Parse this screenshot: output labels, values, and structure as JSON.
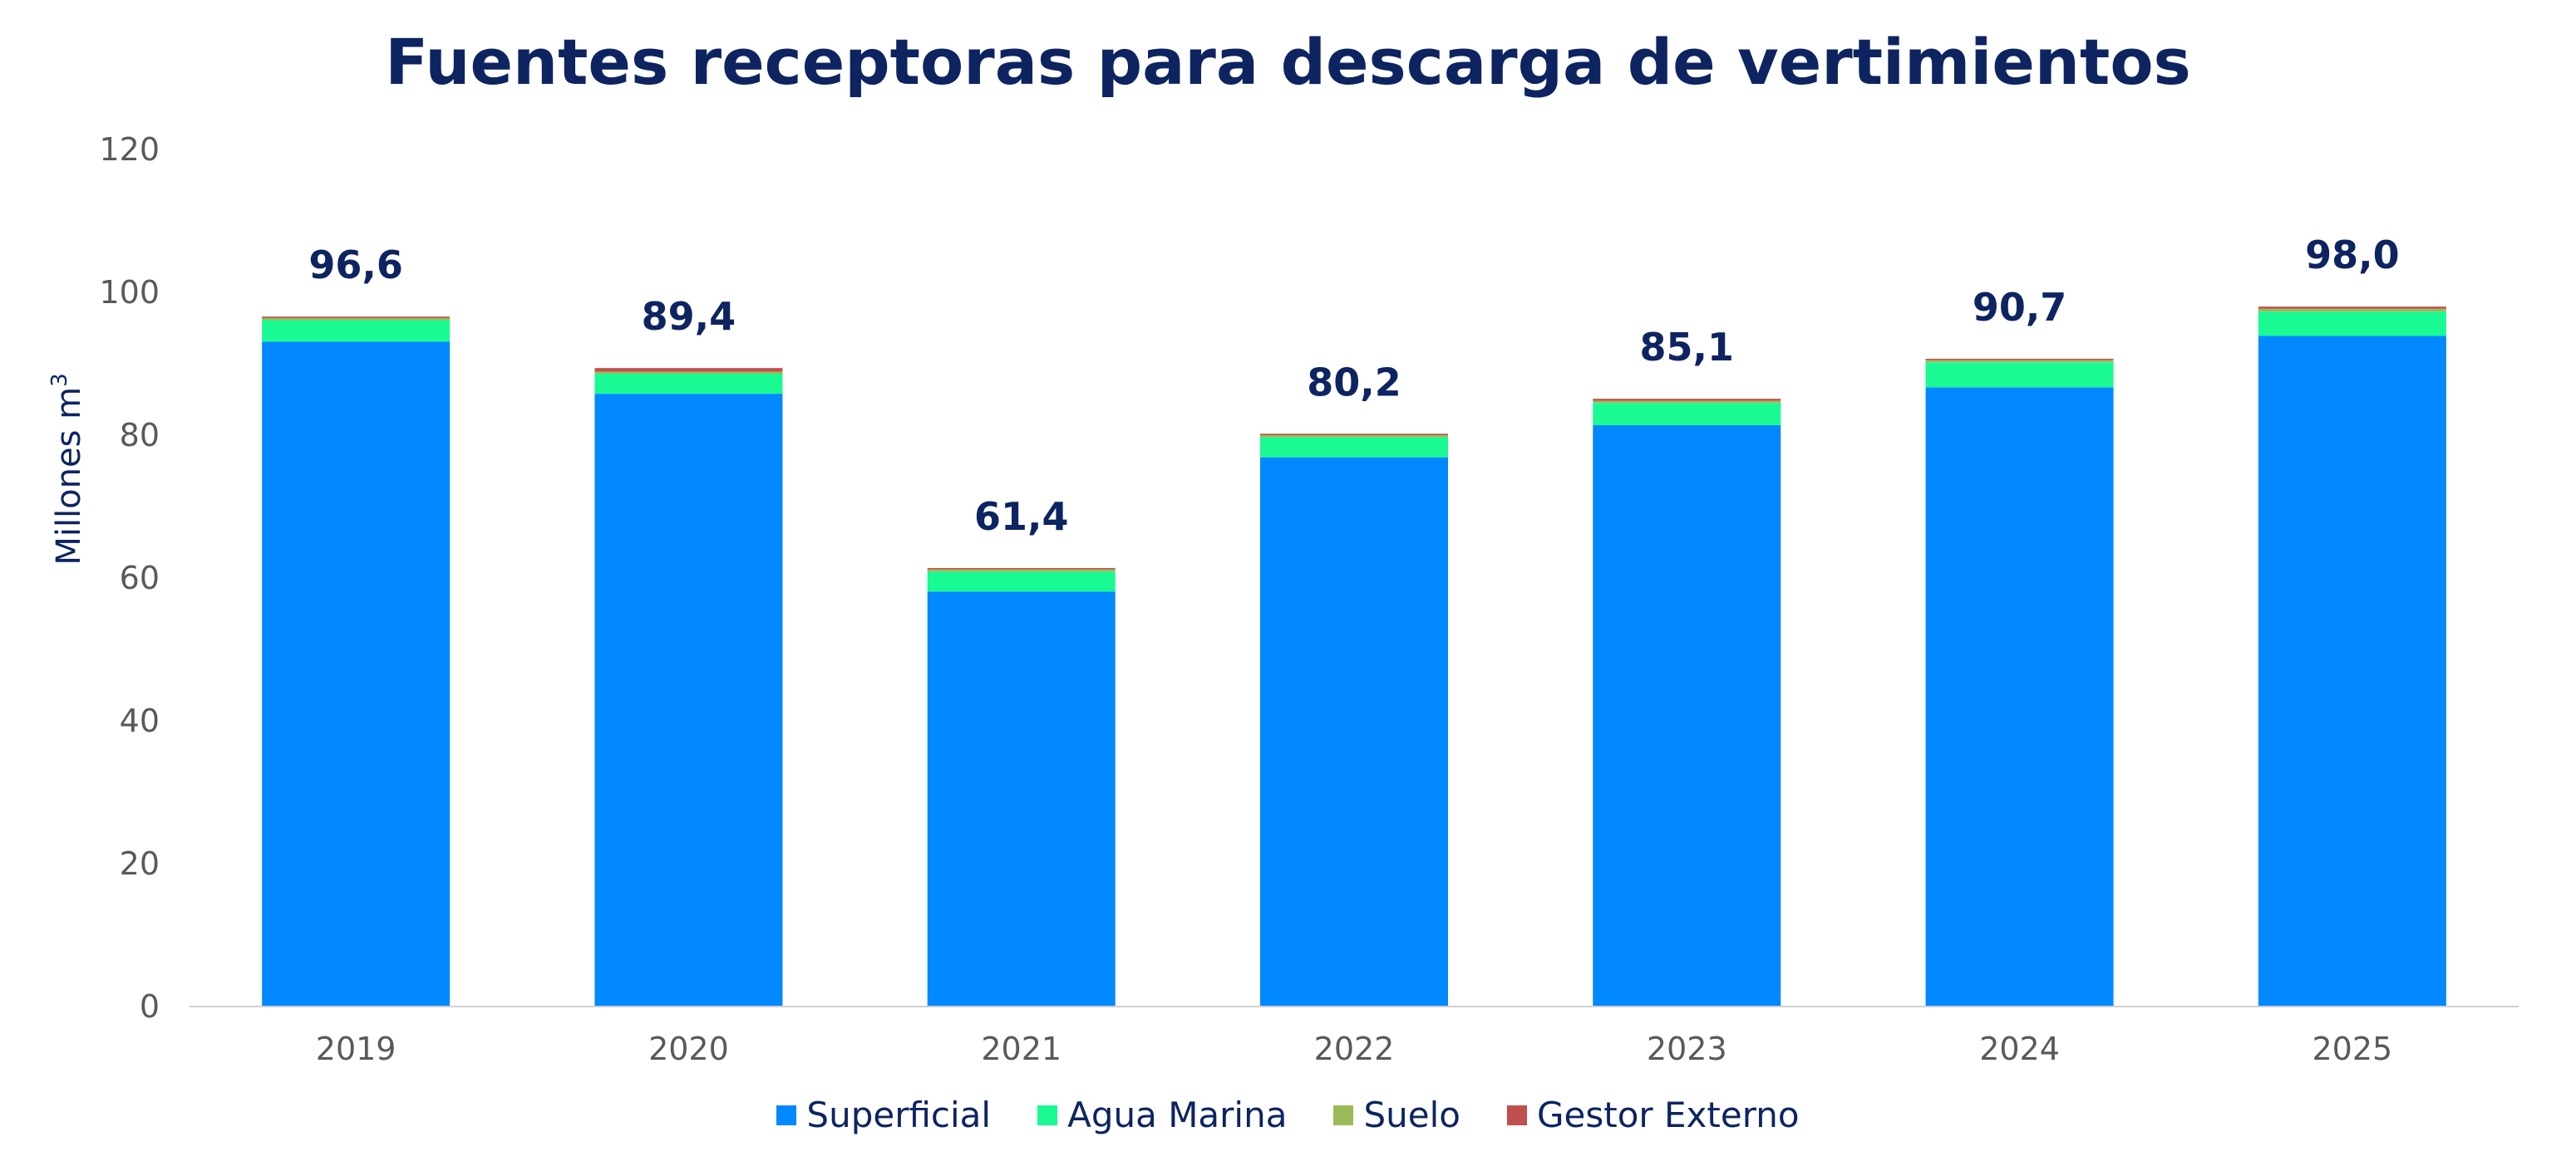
{
  "chart_data": {
    "type": "bar",
    "stacked": true,
    "title": "Fuentes receptoras para descarga de vertimientos",
    "xlabel": "",
    "ylabel": "Millones m",
    "ylabel_superscript": "3",
    "ylim": [
      0,
      120
    ],
    "yticks": [
      "0",
      "20",
      "40",
      "60",
      "80",
      "100",
      "120"
    ],
    "categories": [
      "2019",
      "2020",
      "2021",
      "2022",
      "2023",
      "2024",
      "2025"
    ],
    "series": [
      {
        "name": "Superficial",
        "color": "#0288ff",
        "values": [
          93.1,
          85.8,
          58.1,
          76.9,
          81.4,
          86.7,
          93.9
        ]
      },
      {
        "name": "Agua Marina",
        "color": "#19fa93",
        "values": [
          3.0,
          2.8,
          2.8,
          2.8,
          3.1,
          3.5,
          3.4
        ]
      },
      {
        "name": "Suelo",
        "color": "#9bbb59",
        "values": [
          0.3,
          0.3,
          0.3,
          0.3,
          0.3,
          0.3,
          0.4
        ]
      },
      {
        "name": "Gestor Externo",
        "color": "#c0504d",
        "values": [
          0.2,
          0.5,
          0.2,
          0.2,
          0.3,
          0.2,
          0.3
        ]
      }
    ],
    "totals": [
      "96,6",
      "89,4",
      "61,4",
      "80,2",
      "85,1",
      "90,7",
      "98,0"
    ],
    "legend_position": "bottom",
    "grid": false
  }
}
